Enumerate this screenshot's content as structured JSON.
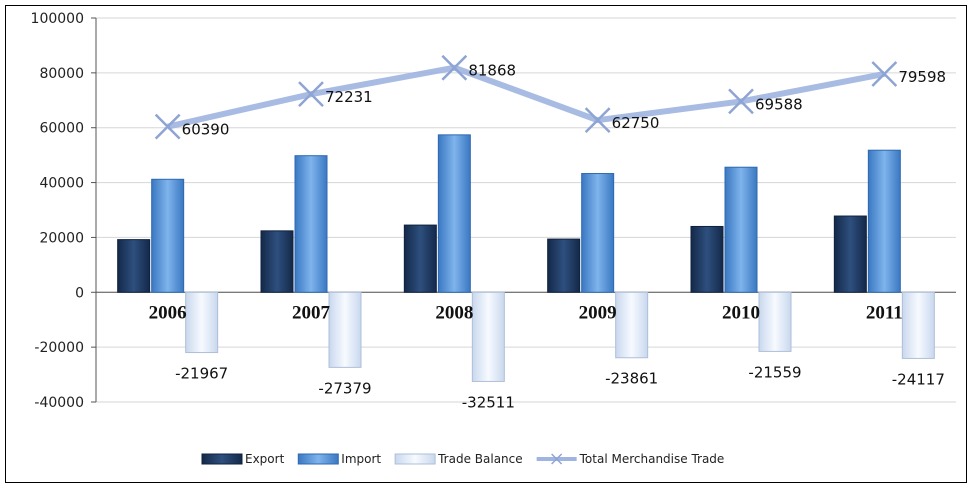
{
  "chart_data": {
    "type": "bar",
    "categories": [
      "2006",
      "2007",
      "2008",
      "2009",
      "2010",
      "2011"
    ],
    "series": [
      {
        "name": "Export",
        "type": "bar",
        "color": "#1f3b62",
        "values": [
          19200,
          22400,
          24500,
          19400,
          24000,
          27800
        ]
      },
      {
        "name": "Import",
        "type": "bar",
        "color": "#4f8fd4",
        "values": [
          41200,
          49800,
          57400,
          43300,
          45600,
          51800
        ]
      },
      {
        "name": "Trade Balance",
        "type": "bar",
        "color": "#dce8f6",
        "values": [
          -21967,
          -27379,
          -32511,
          -23861,
          -21559,
          -24117
        ],
        "labels": [
          "-21967",
          "-27379",
          "-32511",
          "-23861",
          "-21559",
          "-24117"
        ]
      },
      {
        "name": "Total Merchandise Trade",
        "type": "line",
        "color": "#9fb4e0",
        "values": [
          60390,
          72231,
          81868,
          62750,
          69588,
          79598
        ],
        "labels": [
          "60390",
          "72231",
          "81868",
          "62750",
          "69588",
          "79598"
        ]
      }
    ],
    "yticks": [
      "100000",
      "80000",
      "60000",
      "40000",
      "20000",
      "0",
      "-20000",
      "-40000"
    ],
    "ylim": [
      -40000,
      100000
    ],
    "grid": true,
    "legend": "bottom",
    "title": "",
    "xlabel": "",
    "ylabel": ""
  }
}
